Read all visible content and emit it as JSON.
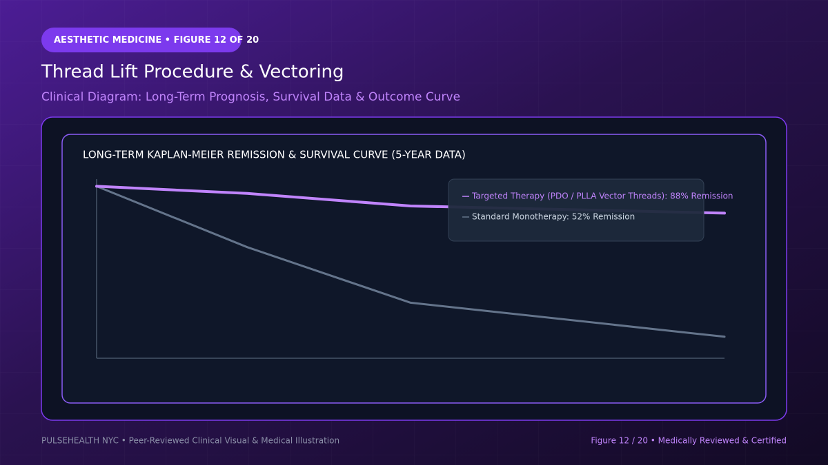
{
  "header": {
    "badge": "AESTHETIC MEDICINE • FIGURE 12 OF 20",
    "title": "Thread Lift Procedure & Vectoring",
    "subtitle": "Clinical Diagram: Long-Term Prognosis, Survival Data & Outcome Curve"
  },
  "chart_data": {
    "type": "line",
    "title": "LONG-TERM KAPLAN-MEIER REMISSION & SURVIVAL CURVE (5-YEAR DATA)",
    "x": [
      0,
      1.2,
      2.5,
      5
    ],
    "xlim": [
      0,
      5
    ],
    "ylim": [
      0,
      100
    ],
    "series": [
      {
        "name": "Targeted Therapy (PDO / PLLA Vector Threads): 88% Remission",
        "color": "#c084fc",
        "values": [
          96,
          92,
          85,
          81
        ]
      },
      {
        "name": "Standard Monotherapy: 52% Remission",
        "color": "#64748b",
        "values": [
          96,
          62,
          31,
          12
        ]
      }
    ],
    "legend": "top-right",
    "grid": false
  },
  "footer": {
    "left": "PULSEHEALTH NYC  •  Peer-Reviewed Clinical Visual & Medical Illustration",
    "right": "Figure 12 / 20  •  Medically Reviewed & Certified"
  }
}
